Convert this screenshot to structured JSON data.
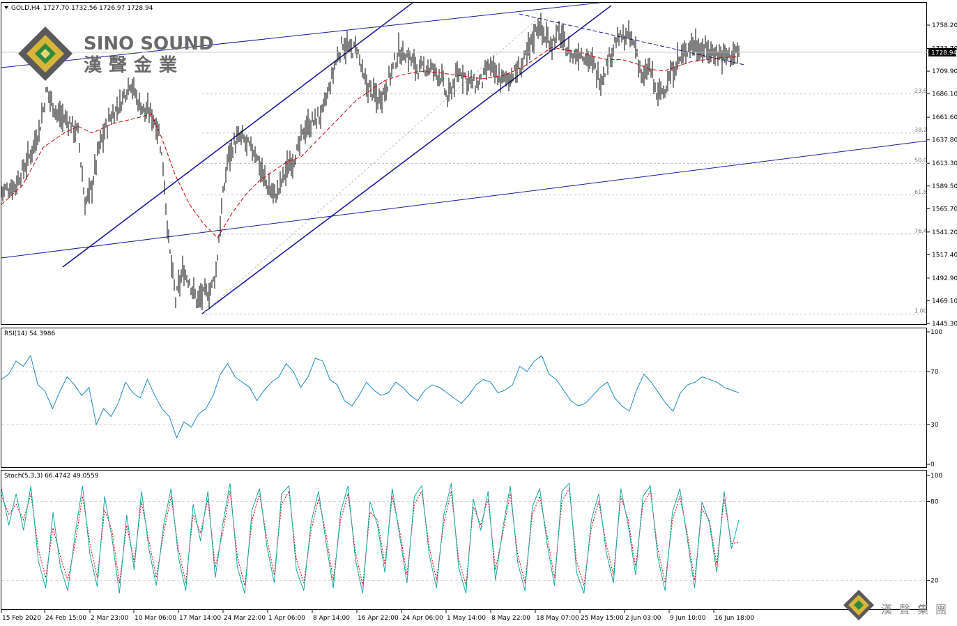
{
  "header": {
    "symbol_timeframe": "GOLD,H4",
    "ohlc": "1727.70 1732.56 1726.97 1728.94"
  },
  "logo": {
    "name_en": "SINO SOUND",
    "name_zh": "漢聲金業",
    "footer_zh": "漢聲集團"
  },
  "colors": {
    "price": "#000000",
    "ma": "#cc0000",
    "channel": "#1a1a9a",
    "rsi": "#1e88c8",
    "stoch_main": "#18a4a4",
    "stoch_signal": "#cc0000",
    "grid": "#c8c8c8",
    "fib": "#b4b4b4"
  },
  "chart_data": [
    {
      "type": "candlestick",
      "title": "GOLD,H4",
      "ylim": [
        1445.3,
        1782.0
      ],
      "y_ticks": [
        1758.2,
        1733.7,
        1709.9,
        1686.1,
        1661.6,
        1637.8,
        1613.3,
        1589.5,
        1565.7,
        1541.2,
        1517.4,
        1492.9,
        1469.1,
        1445.3
      ],
      "current_price": "1728.94",
      "x_labels": [
        "15 Feb 2020",
        "24 Feb 15:00",
        "2 Mar 23:00",
        "10 Mar 06:00",
        "17 Mar 14:00",
        "24 Mar 22:00",
        "1 Apr 06:00",
        "8 Apr 14:00",
        "16 Apr 22:00",
        "24 Apr 06:00",
        "1 May 14:00",
        "8 May 22:00",
        "18 May 07:00",
        "25 May 15:00",
        "2 Jun 03:00",
        "9 Jun 10:00",
        "16 Jun 18:00"
      ],
      "price_path": [
        [
          0,
          1584
        ],
        [
          20,
          1590
        ],
        [
          40,
          1620
        ],
        [
          55,
          1650
        ],
        [
          65,
          1690
        ],
        [
          80,
          1665
        ],
        [
          95,
          1658
        ],
        [
          110,
          1645
        ],
        [
          120,
          1570
        ],
        [
          130,
          1590
        ],
        [
          140,
          1630
        ],
        [
          155,
          1660
        ],
        [
          170,
          1675
        ],
        [
          185,
          1700
        ],
        [
          195,
          1680
        ],
        [
          205,
          1668
        ],
        [
          215,
          1665
        ],
        [
          225,
          1650
        ],
        [
          232,
          1610
        ],
        [
          240,
          1530
        ],
        [
          250,
          1470
        ],
        [
          260,
          1500
        ],
        [
          270,
          1490
        ],
        [
          280,
          1470
        ],
        [
          290,
          1475
        ],
        [
          300,
          1480
        ],
        [
          308,
          1500
        ],
        [
          315,
          1560
        ],
        [
          325,
          1620
        ],
        [
          335,
          1635
        ],
        [
          345,
          1640
        ],
        [
          355,
          1630
        ],
        [
          365,
          1625
        ],
        [
          375,
          1600
        ],
        [
          385,
          1585
        ],
        [
          395,
          1580
        ],
        [
          405,
          1600
        ],
        [
          415,
          1615
        ],
        [
          425,
          1625
        ],
        [
          435,
          1650
        ],
        [
          445,
          1655
        ],
        [
          460,
          1665
        ],
        [
          470,
          1690
        ],
        [
          480,
          1720
        ],
        [
          490,
          1740
        ],
        [
          500,
          1730
        ],
        [
          510,
          1735
        ],
        [
          520,
          1700
        ],
        [
          530,
          1690
        ],
        [
          540,
          1680
        ],
        [
          550,
          1690
        ],
        [
          560,
          1710
        ],
        [
          570,
          1730
        ],
        [
          580,
          1728
        ],
        [
          590,
          1720
        ],
        [
          600,
          1710
        ],
        [
          610,
          1715
        ],
        [
          620,
          1710
        ],
        [
          630,
          1705
        ],
        [
          640,
          1680
        ],
        [
          650,
          1700
        ],
        [
          660,
          1710
        ],
        [
          670,
          1700
        ],
        [
          680,
          1695
        ],
        [
          690,
          1700
        ],
        [
          700,
          1715
        ],
        [
          710,
          1705
        ],
        [
          720,
          1700
        ],
        [
          730,
          1705
        ],
        [
          740,
          1710
        ],
        [
          750,
          1720
        ],
        [
          760,
          1740
        ],
        [
          770,
          1760
        ],
        [
          780,
          1745
        ],
        [
          790,
          1740
        ],
        [
          800,
          1750
        ],
        [
          810,
          1735
        ],
        [
          820,
          1725
        ],
        [
          830,
          1730
        ],
        [
          840,
          1725
        ],
        [
          850,
          1715
        ],
        [
          860,
          1700
        ],
        [
          870,
          1720
        ],
        [
          880,
          1740
        ],
        [
          890,
          1745
        ],
        [
          900,
          1745
        ],
        [
          910,
          1735
        ],
        [
          920,
          1700
        ],
        [
          930,
          1715
        ],
        [
          940,
          1685
        ],
        [
          950,
          1690
        ],
        [
          960,
          1705
        ],
        [
          970,
          1720
        ],
        [
          980,
          1728
        ],
        [
          990,
          1740
        ],
        [
          1000,
          1735
        ],
        [
          1010,
          1732
        ],
        [
          1020,
          1730
        ],
        [
          1030,
          1728
        ],
        [
          1040,
          1726
        ],
        [
          1050,
          1728
        ],
        [
          1058,
          1729
        ]
      ],
      "ma_path": [
        [
          0,
          1570
        ],
        [
          30,
          1590
        ],
        [
          60,
          1630
        ],
        [
          90,
          1645
        ],
        [
          110,
          1652
        ],
        [
          130,
          1645
        ],
        [
          160,
          1655
        ],
        [
          190,
          1660
        ],
        [
          215,
          1665
        ],
        [
          230,
          1640
        ],
        [
          250,
          1600
        ],
        [
          270,
          1570
        ],
        [
          290,
          1550
        ],
        [
          310,
          1535
        ],
        [
          330,
          1560
        ],
        [
          350,
          1580
        ],
        [
          370,
          1595
        ],
        [
          390,
          1605
        ],
        [
          410,
          1615
        ],
        [
          430,
          1620
        ],
        [
          450,
          1635
        ],
        [
          470,
          1650
        ],
        [
          490,
          1665
        ],
        [
          510,
          1680
        ],
        [
          530,
          1690
        ],
        [
          550,
          1700
        ],
        [
          570,
          1705
        ],
        [
          600,
          1710
        ],
        [
          630,
          1708
        ],
        [
          660,
          1705
        ],
        [
          690,
          1702
        ],
        [
          720,
          1705
        ],
        [
          750,
          1715
        ],
        [
          770,
          1725
        ],
        [
          790,
          1735
        ],
        [
          810,
          1732
        ],
        [
          830,
          1730
        ],
        [
          850,
          1725
        ],
        [
          870,
          1722
        ],
        [
          890,
          1722
        ],
        [
          910,
          1718
        ],
        [
          930,
          1712
        ],
        [
          950,
          1710
        ],
        [
          970,
          1715
        ],
        [
          990,
          1720
        ],
        [
          1010,
          1722
        ],
        [
          1030,
          1724
        ],
        [
          1058,
          1725
        ]
      ],
      "fib_levels": [
        {
          "label": "23.6",
          "price": 1686.0
        },
        {
          "label": "38.2",
          "price": 1645.0
        },
        {
          "label": "50.0",
          "price": 1613.0
        },
        {
          "label": "61.8",
          "price": 1580.0
        },
        {
          "label": "76.4",
          "price": 1539.0
        },
        {
          "label": "1.00",
          "price": 1455.0
        }
      ]
    },
    {
      "type": "line",
      "title": "RSI(14) 54.3986",
      "ylim": [
        0,
        100
      ],
      "y_ticks": [
        100,
        70,
        30,
        0
      ],
      "levels": [
        70,
        30
      ],
      "values": [
        64,
        68,
        78,
        74,
        82,
        60,
        55,
        42,
        55,
        66,
        60,
        52,
        58,
        30,
        42,
        36,
        46,
        62,
        54,
        50,
        64,
        52,
        42,
        36,
        20,
        32,
        28,
        38,
        42,
        52,
        68,
        76,
        66,
        62,
        58,
        48,
        56,
        62,
        66,
        76,
        70,
        58,
        66,
        80,
        78,
        64,
        60,
        48,
        44,
        52,
        62,
        56,
        52,
        54,
        62,
        58,
        52,
        48,
        56,
        60,
        58,
        54,
        50,
        46,
        52,
        60,
        64,
        62,
        54,
        56,
        60,
        74,
        70,
        78,
        82,
        68,
        64,
        56,
        48,
        44,
        46,
        52,
        58,
        62,
        50,
        44,
        40,
        56,
        68,
        62,
        54,
        46,
        40,
        54,
        60,
        62,
        66,
        64,
        62,
        58,
        56,
        54
      ]
    },
    {
      "type": "line",
      "title": "Stoch(5,3,3) 66.4742 49.0559",
      "ylim": [
        0,
        100
      ],
      "y_ticks": [
        100,
        80,
        20
      ],
      "levels": [
        80,
        20
      ],
      "main": [
        90,
        62,
        86,
        58,
        92,
        35,
        14,
        72,
        30,
        12,
        55,
        92,
        40,
        15,
        84,
        52,
        10,
        70,
        28,
        88,
        44,
        16,
        62,
        90,
        38,
        12,
        78,
        50,
        88,
        22,
        62,
        94,
        30,
        10,
        74,
        90,
        46,
        18,
        86,
        92,
        28,
        12,
        64,
        88,
        50,
        14,
        72,
        92,
        36,
        10,
        80,
        62,
        26,
        90,
        54,
        18,
        84,
        92,
        40,
        14,
        70,
        94,
        30,
        10,
        82,
        58,
        88,
        20,
        60,
        92,
        34,
        12,
        76,
        90,
        48,
        16,
        88,
        94,
        26,
        10,
        66,
        86,
        42,
        18,
        90,
        62,
        24,
        84,
        92,
        38,
        12,
        72,
        90,
        52,
        14,
        80,
        64,
        26,
        88,
        44,
        66
      ],
      "signal": [
        85,
        70,
        78,
        66,
        86,
        44,
        22,
        60,
        38,
        20,
        48,
        84,
        48,
        22,
        74,
        58,
        18,
        62,
        34,
        80,
        50,
        22,
        56,
        84,
        44,
        18,
        70,
        56,
        82,
        30,
        56,
        88,
        38,
        16,
        66,
        86,
        52,
        24,
        78,
        88,
        36,
        18,
        58,
        82,
        56,
        20,
        66,
        86,
        42,
        16,
        72,
        66,
        32,
        84,
        58,
        24,
        78,
        88,
        46,
        20,
        64,
        88,
        36,
        16,
        76,
        62,
        82,
        28,
        56,
        86,
        40,
        18,
        70,
        84,
        54,
        22,
        80,
        90,
        34,
        16,
        60,
        80,
        48,
        24,
        84,
        66,
        30,
        78,
        88,
        44,
        18,
        66,
        84,
        56,
        20,
        74,
        66,
        32,
        82,
        48,
        49
      ]
    }
  ]
}
